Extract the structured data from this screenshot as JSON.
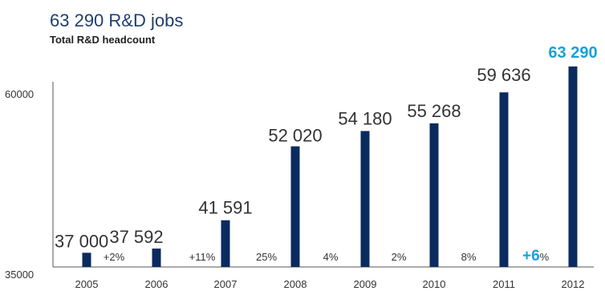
{
  "chart_data": {
    "type": "bar",
    "title": "63 290 R&D jobs",
    "subtitle": "Total R&D headcount",
    "xlabel": "",
    "ylabel": "",
    "categories": [
      "2005",
      "2006",
      "2007",
      "2008",
      "2009",
      "2010",
      "2011",
      "2012"
    ],
    "values": [
      37000,
      37592,
      41591,
      52020,
      54180,
      55268,
      59636,
      63290
    ],
    "value_labels": [
      "37 000",
      "37 592",
      "41 591",
      "52 020",
      "54 180",
      "55 268",
      "59 636",
      "63 290"
    ],
    "growth_labels": [
      "+2%",
      "+11%",
      "25%",
      "4%",
      "2%",
      "8%"
    ],
    "highlight_growth": {
      "number": "+6",
      "suffix": "%"
    },
    "y_ticks": [
      "60000",
      "35000"
    ],
    "ylim": [
      35000,
      60000
    ],
    "grid": false,
    "colors": {
      "bar": "#0b2b5e",
      "title": "#1f3d6e",
      "text": "#333333",
      "highlight": "#1aa0d8",
      "axis": "#555555"
    }
  }
}
